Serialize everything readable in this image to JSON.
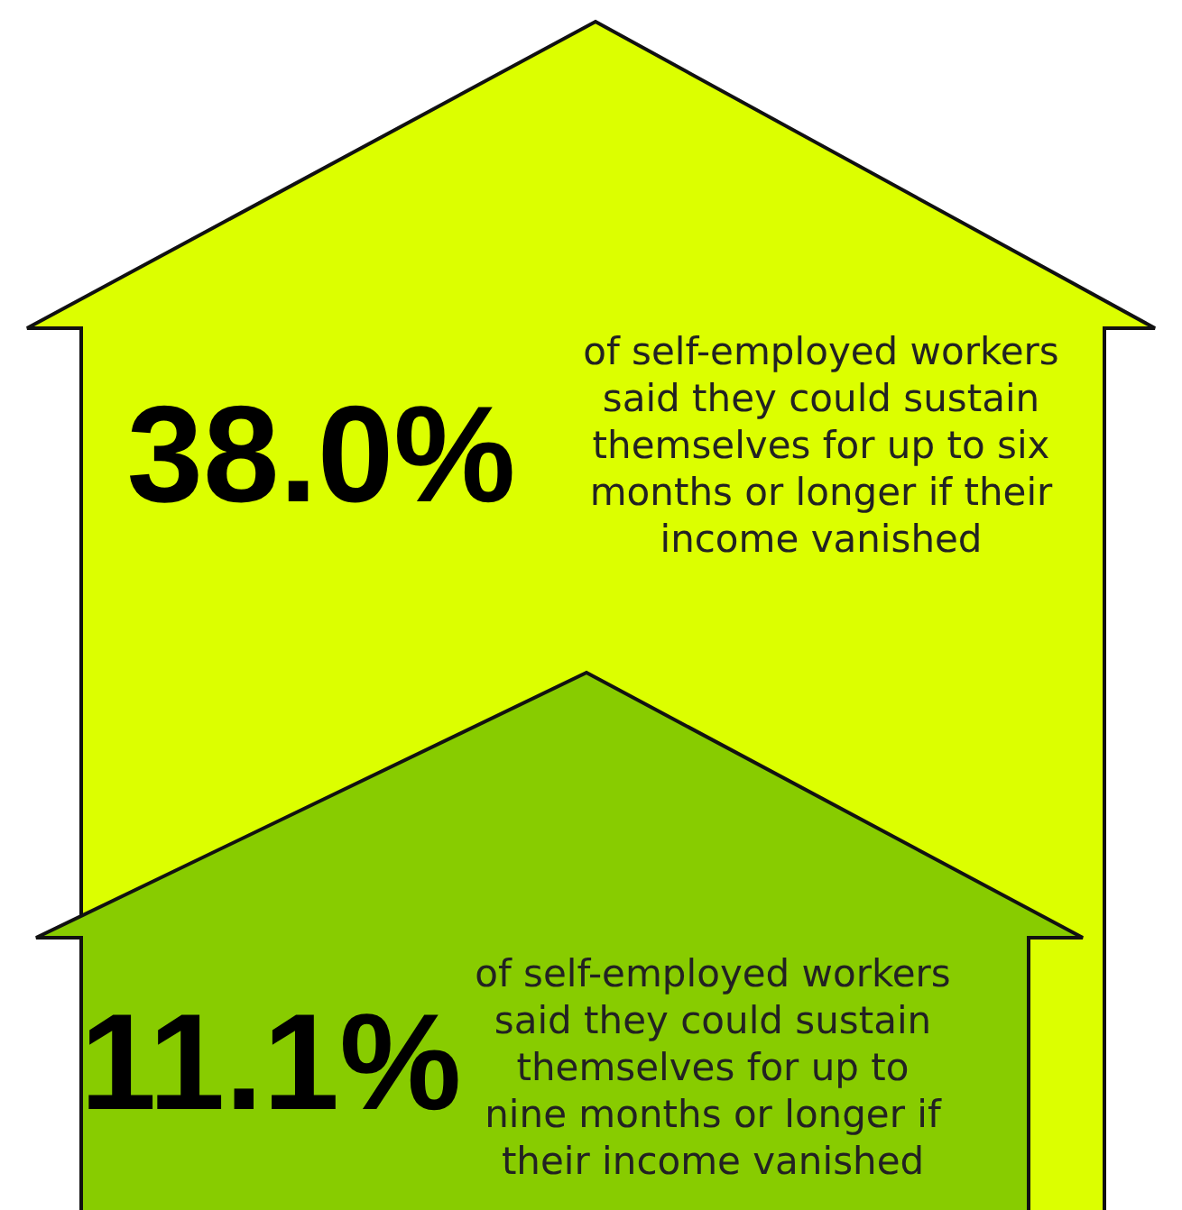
{
  "chart_data": {
    "type": "other",
    "categories": [
      "of self-employed workers said they could sustain themselves for up to six months or longer if their income vanished",
      "of self-employed workers said they could sustain themselves for up to nine months or longer if their income vanished"
    ],
    "values": [
      38.0,
      11.1
    ],
    "value_labels": [
      "38.0%",
      "11.1%"
    ],
    "colors": [
      "#dcff00",
      "#88cc00"
    ]
  }
}
